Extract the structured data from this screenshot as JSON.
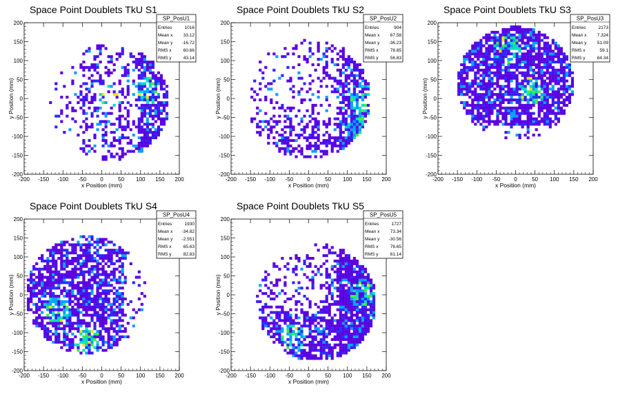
{
  "chart_data": [
    {
      "type": "heatmap",
      "title": "Space Point Doublets TkU S1",
      "xlabel": "x Position (mm)",
      "ylabel": "y Position (mm)",
      "xlim": [
        -200,
        200
      ],
      "ylim": [
        -200,
        200
      ],
      "xticks": [
        "-200",
        "-150",
        "-100",
        "-50",
        "0",
        "50",
        "100",
        "150",
        "200"
      ],
      "yticks": [
        "-200",
        "-150",
        "-100",
        "-50",
        "0",
        "50",
        "100",
        "150",
        "200"
      ],
      "stats": {
        "name": "SP_PosU1",
        "entries": "1016",
        "mean_x": "33.12",
        "mean_y": "-16.72",
        "rms_x": "60.66",
        "rms_y": "43.14"
      },
      "distribution": {
        "cx": 20,
        "cy": -10,
        "radius": 155,
        "density": 0.35,
        "hot": [
          [
            20,
            0
          ],
          [
            120,
            20
          ]
        ],
        "fill": "partial-ring-right"
      }
    },
    {
      "type": "heatmap",
      "title": "Space Point Doublets TkU S2",
      "xlabel": "x Position (mm)",
      "ylabel": "y Position (mm)",
      "xlim": [
        -200,
        200
      ],
      "ylim": [
        -200,
        200
      ],
      "xticks": [
        "-200",
        "-150",
        "-100",
        "-50",
        "0",
        "50",
        "100",
        "150",
        "200"
      ],
      "yticks": [
        "-200",
        "-150",
        "-100",
        "-50",
        "0",
        "50",
        "100",
        "150",
        "200"
      ],
      "stats": {
        "name": "SP_PosU2",
        "entries": "904",
        "mean_x": "67.58",
        "mean_y": "-36.23",
        "rms_x": "78.85",
        "rms_y": "56.83"
      },
      "distribution": {
        "cx": 0,
        "cy": 0,
        "radius": 160,
        "density": 0.3,
        "hot": [
          [
            140,
            0
          ],
          [
            130,
            -80
          ]
        ],
        "fill": "lower-right-arc"
      }
    },
    {
      "type": "heatmap",
      "title": "Space Point Doublets TkU S3",
      "xlabel": "x Position (mm)",
      "ylabel": "y Position (mm)",
      "xlim": [
        -200,
        200
      ],
      "ylim": [
        -200,
        200
      ],
      "xticks": [
        "-200",
        "-150",
        "-100",
        "-50",
        "0",
        "50",
        "100",
        "150",
        "200"
      ],
      "yticks": [
        "-200",
        "-150",
        "-100",
        "-50",
        "0",
        "50",
        "100",
        "150",
        "200"
      ],
      "stats": {
        "name": "SP_PosU3",
        "entries": "2173",
        "mean_x": "7.324",
        "mean_y": "51.09",
        "rms_x": "59.1",
        "rms_y": "64.34"
      },
      "distribution": {
        "cx": 0,
        "cy": 40,
        "radius": 150,
        "density": 0.75,
        "hot": [
          [
            -20,
            130
          ],
          [
            40,
            20
          ]
        ],
        "fill": "upper-disk"
      }
    },
    {
      "type": "heatmap",
      "title": "Space Point Doublets TkU S4",
      "xlabel": "x Position (mm)",
      "ylabel": "y Position (mm)",
      "xlim": [
        -200,
        200
      ],
      "ylim": [
        -200,
        200
      ],
      "xticks": [
        "-200",
        "-150",
        "-100",
        "-50",
        "0",
        "50",
        "100",
        "150",
        "200"
      ],
      "yticks": [
        "-200",
        "-150",
        "-100",
        "-50",
        "0",
        "50",
        "100",
        "150",
        "200"
      ],
      "stats": {
        "name": "SP_PosU4",
        "entries": "1930",
        "mean_x": "-34.82",
        "mean_y": "-2.551",
        "rms_x": "65.63",
        "rms_y": "82.83"
      },
      "distribution": {
        "cx": -40,
        "cy": 0,
        "radius": 155,
        "density": 0.7,
        "hot": [
          [
            -120,
            -40
          ],
          [
            -40,
            -120
          ]
        ],
        "fill": "left-disk"
      }
    },
    {
      "type": "heatmap",
      "title": "Space Point Doublets TkU S5",
      "xlabel": "x Position (mm)",
      "ylabel": "y Position (mm)",
      "xlim": [
        -200,
        200
      ],
      "ylim": [
        -200,
        200
      ],
      "xticks": [
        "-200",
        "-150",
        "-100",
        "-50",
        "0",
        "50",
        "100",
        "150",
        "200"
      ],
      "yticks": [
        "-200",
        "-150",
        "-100",
        "-50",
        "0",
        "50",
        "100",
        "150",
        "200"
      ],
      "stats": {
        "name": "SP_PosU5",
        "entries": "1727",
        "mean_x": "73.34",
        "mean_y": "-30.56",
        "rms_x": "76.65",
        "rms_y": "61.14"
      },
      "distribution": {
        "cx": 20,
        "cy": -20,
        "radius": 155,
        "density": 0.4,
        "hot": [
          [
            140,
            0
          ],
          [
            -40,
            -110
          ]
        ],
        "fill": "lower-right-arc"
      }
    }
  ],
  "stats_labels": {
    "entries": "Entries",
    "mean_x": "Mean x",
    "mean_y": "Mean y",
    "rms_x": "RMS x",
    "rms_y": "RMS y"
  },
  "palette": [
    "#5a00e0",
    "#2a2aff",
    "#0aa0ff",
    "#00e0c0",
    "#40f040",
    "#e8e800",
    "#ff8000",
    "#ff1010"
  ]
}
